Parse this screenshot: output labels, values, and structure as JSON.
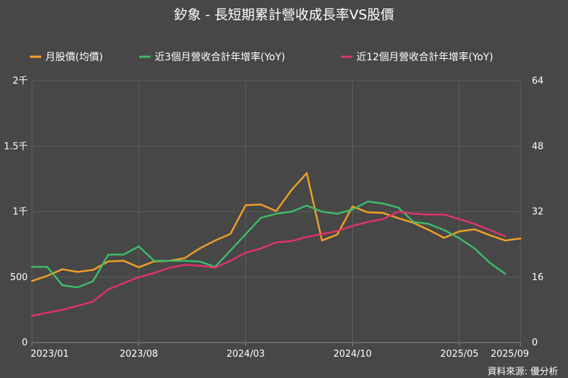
{
  "chart_data": {
    "type": "line",
    "title": "釸象 - 長短期累計營收成長率VS股價",
    "source": "資料來源: 優分析",
    "x_tick_labels": [
      "2023/01",
      "2023/08",
      "2024/03",
      "2024/10",
      "2025/05",
      "2025/09"
    ],
    "x_tick_months": [
      "2023-01",
      "2023-08",
      "2024-03",
      "2024-10",
      "2025-05",
      "2025-09"
    ],
    "x_range": [
      "2023-01",
      "2025-09"
    ],
    "y_left_range": [
      0,
      2000
    ],
    "y_left_ticks": [
      0,
      500,
      1000,
      1500,
      2000
    ],
    "y_left_tick_labels": [
      "0",
      "500",
      "1千",
      "1.5千",
      "2千"
    ],
    "y_right_range": [
      0,
      64
    ],
    "y_right_ticks": [
      0,
      16,
      32,
      48,
      64
    ],
    "y_right_tick_labels": [
      "0",
      "16",
      "32",
      "48",
      "64"
    ],
    "grid": true,
    "legend_position": "top",
    "series": [
      {
        "name": "月股價(均價)",
        "axis": "left",
        "color": "#f0a024",
        "x": [
          "2023-01",
          "2023-02",
          "2023-03",
          "2023-04",
          "2023-05",
          "2023-06",
          "2023-07",
          "2023-08",
          "2023-09",
          "2023-10",
          "2023-11",
          "2023-12",
          "2024-01",
          "2024-02",
          "2024-03",
          "2024-04",
          "2024-05",
          "2024-06",
          "2024-07",
          "2024-08",
          "2024-09",
          "2024-10",
          "2024-11",
          "2024-12",
          "2025-01",
          "2025-02",
          "2025-03",
          "2025-04",
          "2025-05",
          "2025-06",
          "2025-07",
          "2025-08",
          "2025-09"
        ],
        "values": [
          470,
          510,
          560,
          540,
          555,
          620,
          625,
          575,
          620,
          625,
          645,
          720,
          780,
          830,
          1050,
          1055,
          1005,
          1165,
          1295,
          780,
          825,
          1040,
          995,
          990,
          950,
          915,
          860,
          800,
          850,
          865,
          820,
          780,
          795
        ]
      },
      {
        "name": "近3個月營收合計年增率(YoY)",
        "axis": "right",
        "color": "#3dbb6a",
        "x": [
          "2023-01",
          "2023-02",
          "2023-03",
          "2023-04",
          "2023-05",
          "2023-06",
          "2023-07",
          "2023-08",
          "2023-09",
          "2023-10",
          "2023-11",
          "2023-12",
          "2024-01",
          "2024-02",
          "2024-03",
          "2024-04",
          "2024-05",
          "2024-06",
          "2024-07",
          "2024-08",
          "2024-09",
          "2024-10",
          "2024-11",
          "2024-12",
          "2025-01",
          "2025-02",
          "2025-03",
          "2025-04",
          "2025-05",
          "2025-06",
          "2025-07",
          "2025-08"
        ],
        "values": [
          18.5,
          18.5,
          14.0,
          13.5,
          15.0,
          21.5,
          21.5,
          23.5,
          20.0,
          20.0,
          20.0,
          19.8,
          18.5,
          22.5,
          26.5,
          30.5,
          31.5,
          32.0,
          33.5,
          32.0,
          31.5,
          32.5,
          34.5,
          34.0,
          33.0,
          29.5,
          29.0,
          27.5,
          25.5,
          23.0,
          19.5,
          16.8
        ]
      },
      {
        "name": "近12個月營收合計年增率(YoY)",
        "axis": "right",
        "color": "#e0326e",
        "x": [
          "2023-01",
          "2023-02",
          "2023-03",
          "2023-04",
          "2023-05",
          "2023-06",
          "2023-07",
          "2023-08",
          "2023-09",
          "2023-10",
          "2023-11",
          "2023-12",
          "2024-01",
          "2024-02",
          "2024-03",
          "2024-04",
          "2024-05",
          "2024-06",
          "2024-07",
          "2024-08",
          "2024-09",
          "2024-10",
          "2024-11",
          "2024-12",
          "2025-01",
          "2025-02",
          "2025-03",
          "2025-04",
          "2025-05",
          "2025-06",
          "2025-07",
          "2025-08"
        ],
        "values": [
          6.5,
          7.3,
          8.0,
          9.0,
          10.0,
          13.0,
          14.5,
          16.0,
          17.0,
          18.3,
          19.0,
          18.8,
          18.3,
          20.0,
          22.0,
          23.0,
          24.5,
          24.8,
          25.8,
          26.5,
          27.3,
          28.5,
          29.5,
          30.2,
          32.0,
          31.5,
          31.3,
          31.3,
          30.2,
          29.0,
          27.5,
          26.0
        ]
      }
    ]
  }
}
